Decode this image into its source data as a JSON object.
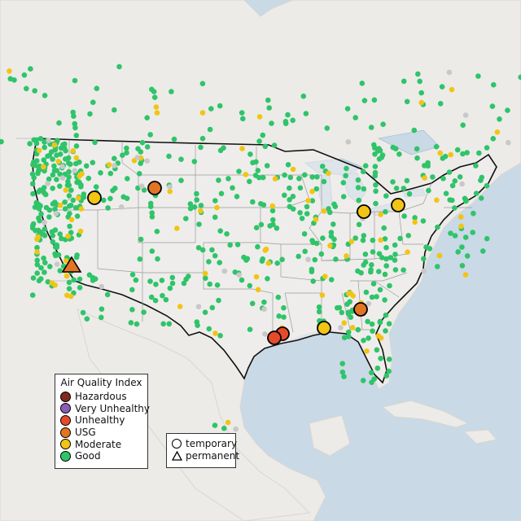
{
  "legend": {
    "title": "Air Quality Index",
    "items": [
      {
        "label": "Hazardous",
        "color": "#7e2a1c"
      },
      {
        "label": "Very Unhealthy",
        "color": "#8c5bb5"
      },
      {
        "label": "Unhealthy",
        "color": "#e54b2a"
      },
      {
        "label": "USG",
        "color": "#e27524"
      },
      {
        "label": "Moderate",
        "color": "#f2c414"
      },
      {
        "label": "Good",
        "color": "#2fc46a"
      }
    ]
  },
  "monitor_legend": {
    "temporary_label": "temporary",
    "permanent_label": "permanent"
  },
  "colors": {
    "water": "#c9d9e6",
    "land": "#ecebe8",
    "us_land": "#f1f0ee",
    "no_data": "#c8c8c8"
  },
  "monitors": {
    "large": [
      {
        "site": "northern-california",
        "category": "USG",
        "type": "permanent"
      },
      {
        "site": "boise",
        "category": "Moderate",
        "type": "temporary"
      },
      {
        "site": "montana",
        "category": "USG",
        "type": "temporary"
      },
      {
        "site": "chicago",
        "category": "Moderate",
        "type": "temporary"
      },
      {
        "site": "detroit",
        "category": "Moderate",
        "type": "temporary"
      },
      {
        "site": "atlanta",
        "category": "USG",
        "type": "temporary"
      },
      {
        "site": "houston-a",
        "category": "Unhealthy",
        "type": "temporary"
      },
      {
        "site": "houston-b",
        "category": "Unhealthy",
        "type": "temporary"
      },
      {
        "site": "gulf-coast",
        "category": "Moderate",
        "type": "temporary"
      }
    ]
  }
}
